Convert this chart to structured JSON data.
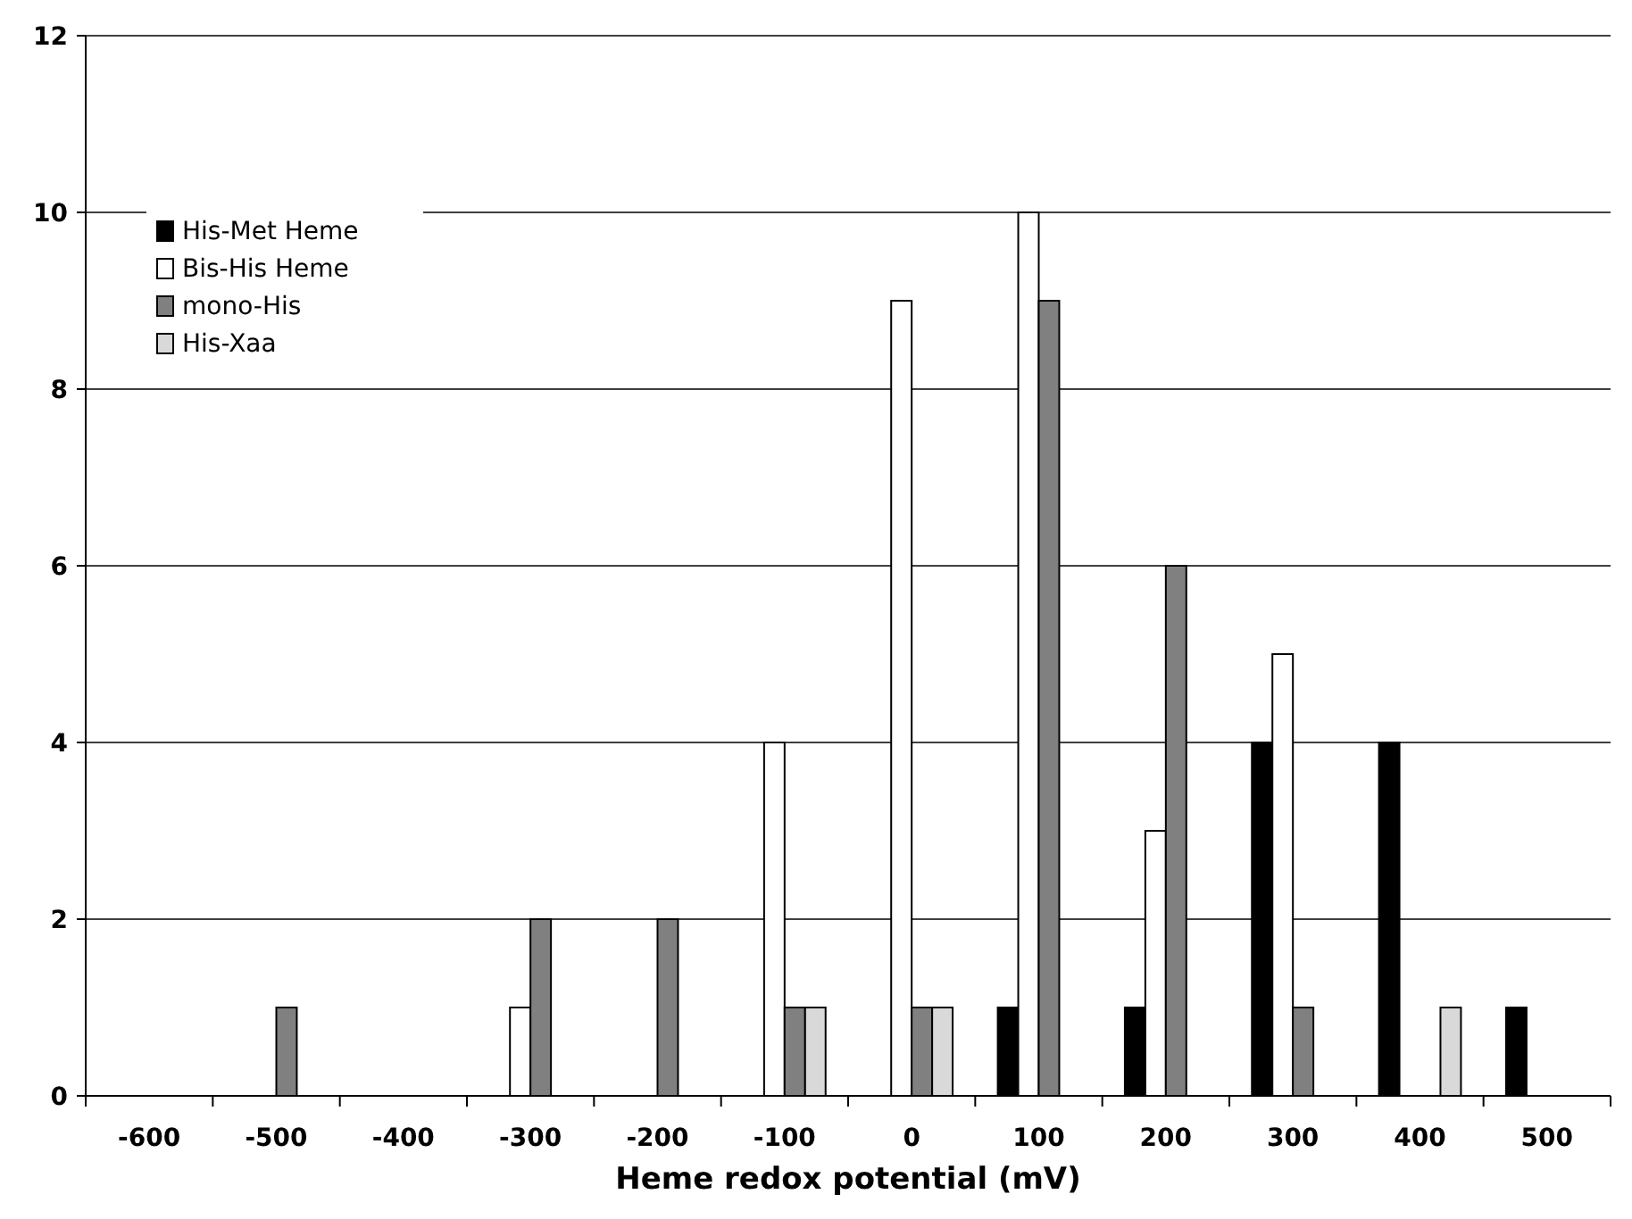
{
  "chart_data": {
    "type": "bar",
    "xlabel": "Heme redox potential (mV)",
    "categories": [
      "-600",
      "-500",
      "-400",
      "-300",
      "-200",
      "-100",
      "0",
      "100",
      "200",
      "300",
      "400",
      "500"
    ],
    "series": [
      {
        "name": "His-Met Heme",
        "color": "#000000",
        "values": [
          0,
          0,
          0,
          0,
          0,
          0,
          0,
          1,
          1,
          4,
          4,
          1
        ]
      },
      {
        "name": "Bis-His Heme",
        "color": "#ffffff",
        "values": [
          0,
          0,
          0,
          1,
          0,
          4,
          9,
          10,
          3,
          5,
          0,
          0
        ]
      },
      {
        "name": "mono-His",
        "color": "#808080",
        "values": [
          0,
          1,
          0,
          2,
          2,
          1,
          1,
          9,
          6,
          1,
          0,
          0
        ]
      },
      {
        "name": "His-Xaa",
        "color": "#d9d9d9",
        "values": [
          0,
          0,
          0,
          0,
          0,
          1,
          1,
          0,
          0,
          0,
          1,
          0
        ]
      }
    ],
    "ylim": [
      0,
      12
    ],
    "yticks": [
      0,
      2,
      4,
      6,
      8,
      10,
      12
    ],
    "grid": "y",
    "legend": "top left"
  }
}
